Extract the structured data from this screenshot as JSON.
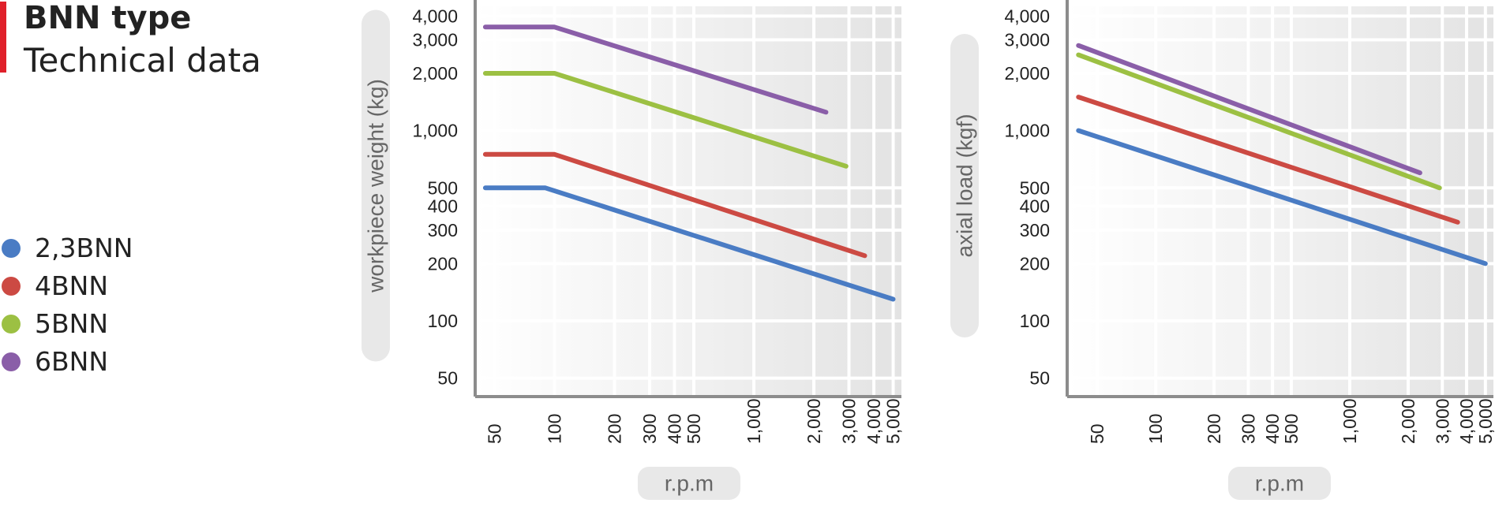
{
  "header": {
    "title": "BNN type",
    "subtitle": "Technical data"
  },
  "legend": [
    {
      "label": "2,3BNN",
      "color": "#4a7cc4"
    },
    {
      "label": "4BNN",
      "color": "#cc4a43"
    },
    {
      "label": "5BNN",
      "color": "#9cc043"
    },
    {
      "label": "6BNN",
      "color": "#8a5ea8"
    }
  ],
  "chart_data": [
    {
      "type": "line",
      "ylabel": "workpiece weight (kg)",
      "xlabel": "r.p.m",
      "x_scale": "log",
      "y_scale": "log",
      "xlim": [
        40,
        5500
      ],
      "ylim": [
        40,
        4500
      ],
      "x_ticks": [
        {
          "value": 50,
          "label": "50"
        },
        {
          "value": 100,
          "label": "100"
        },
        {
          "value": 200,
          "label": "200"
        },
        {
          "value": 300,
          "label": "300"
        },
        {
          "value": 400,
          "label": "400"
        },
        {
          "value": 500,
          "label": "500"
        },
        {
          "value": 1000,
          "label": "1,000"
        },
        {
          "value": 2000,
          "label": "2,000"
        },
        {
          "value": 3000,
          "label": "3,000"
        },
        {
          "value": 4000,
          "label": "4,000"
        },
        {
          "value": 5000,
          "label": "5,000"
        }
      ],
      "y_ticks": [
        {
          "value": 50,
          "label": "50"
        },
        {
          "value": 100,
          "label": "100"
        },
        {
          "value": 200,
          "label": "200"
        },
        {
          "value": 300,
          "label": "300"
        },
        {
          "value": 400,
          "label": "400"
        },
        {
          "value": 500,
          "label": "500"
        },
        {
          "value": 1000,
          "label": "1,000"
        },
        {
          "value": 2000,
          "label": "2,000"
        },
        {
          "value": 3000,
          "label": "3,000"
        },
        {
          "value": 4000,
          "label": "4,000"
        }
      ],
      "grid": true,
      "series": [
        {
          "name": "2,3BNN",
          "color": "#4a7cc4",
          "x": [
            45,
            90,
            5000
          ],
          "y": [
            500,
            500,
            130
          ]
        },
        {
          "name": "4BNN",
          "color": "#cc4a43",
          "x": [
            45,
            100,
            3600
          ],
          "y": [
            750,
            750,
            220
          ]
        },
        {
          "name": "5BNN",
          "color": "#9cc043",
          "x": [
            45,
            100,
            2900
          ],
          "y": [
            2000,
            2000,
            650
          ]
        },
        {
          "name": "6BNN",
          "color": "#8a5ea8",
          "x": [
            45,
            100,
            2300
          ],
          "y": [
            3500,
            3500,
            1250
          ]
        }
      ]
    },
    {
      "type": "line",
      "ylabel": "axial load  (kgf)",
      "xlabel": "r.p.m",
      "x_scale": "log",
      "y_scale": "log",
      "xlim": [
        35,
        5500
      ],
      "ylim": [
        40,
        4500
      ],
      "x_ticks": [
        {
          "value": 50,
          "label": "50"
        },
        {
          "value": 100,
          "label": "100"
        },
        {
          "value": 200,
          "label": "200"
        },
        {
          "value": 300,
          "label": "300"
        },
        {
          "value": 400,
          "label": "400"
        },
        {
          "value": 500,
          "label": "500"
        },
        {
          "value": 1000,
          "label": "1,000"
        },
        {
          "value": 2000,
          "label": "2,000"
        },
        {
          "value": 3000,
          "label": "3,000"
        },
        {
          "value": 4000,
          "label": "4,000"
        },
        {
          "value": 5000,
          "label": "5,000"
        }
      ],
      "y_ticks": [
        {
          "value": 50,
          "label": "50"
        },
        {
          "value": 100,
          "label": "100"
        },
        {
          "value": 200,
          "label": "200"
        },
        {
          "value": 300,
          "label": "300"
        },
        {
          "value": 400,
          "label": "400"
        },
        {
          "value": 500,
          "label": "500"
        },
        {
          "value": 1000,
          "label": "1,000"
        },
        {
          "value": 2000,
          "label": "2,000"
        },
        {
          "value": 3000,
          "label": "3,000"
        },
        {
          "value": 4000,
          "label": "4,000"
        }
      ],
      "grid": true,
      "series": [
        {
          "name": "2,3BNN",
          "color": "#4a7cc4",
          "x": [
            40,
            5000
          ],
          "y": [
            1000,
            200
          ]
        },
        {
          "name": "4BNN",
          "color": "#cc4a43",
          "x": [
            40,
            3600
          ],
          "y": [
            1500,
            330
          ]
        },
        {
          "name": "5BNN",
          "color": "#9cc043",
          "x": [
            40,
            2900
          ],
          "y": [
            2500,
            500
          ]
        },
        {
          "name": "6BNN",
          "color": "#8a5ea8",
          "x": [
            40,
            2300
          ],
          "y": [
            2800,
            600
          ]
        }
      ]
    }
  ]
}
